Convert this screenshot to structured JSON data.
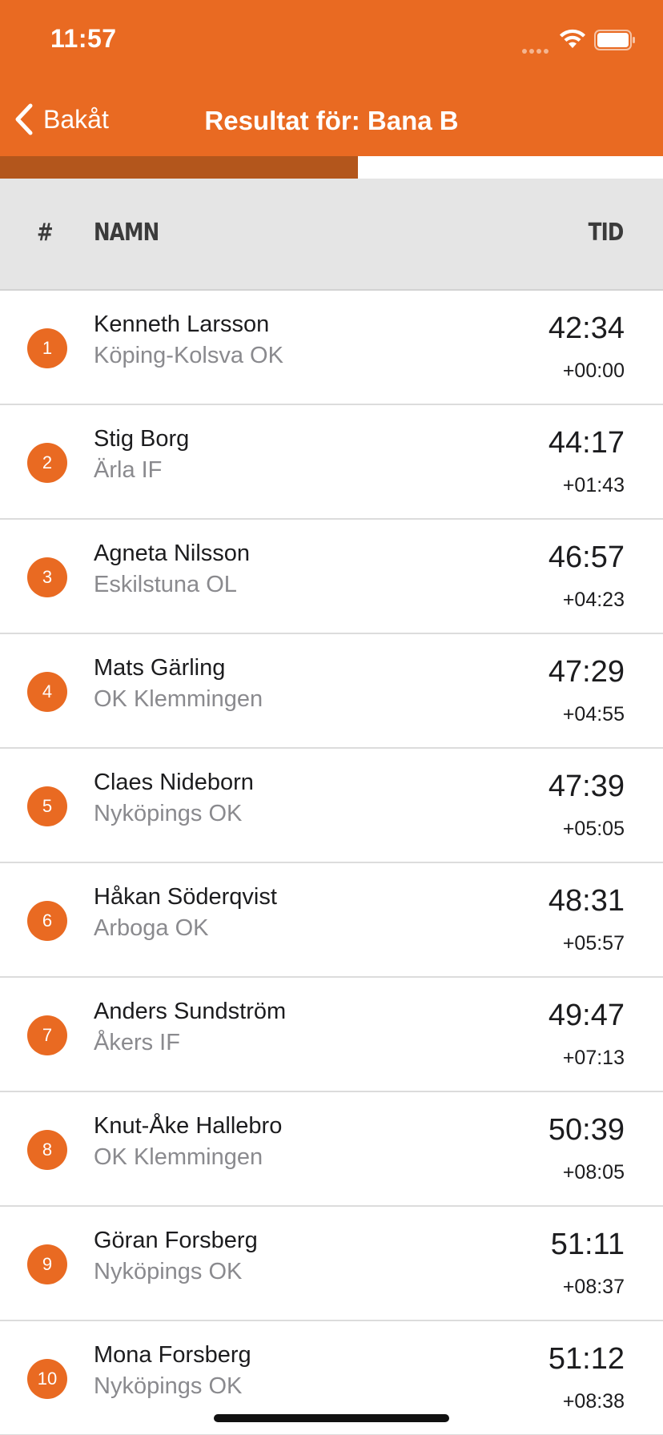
{
  "status_bar": {
    "time": "11:57"
  },
  "nav": {
    "back_label": "Bakåt",
    "title": "Resultat för: Bana B"
  },
  "progress": {
    "fraction": 0.54
  },
  "table": {
    "headers": {
      "rank": "#",
      "name": "NAMN",
      "time": "TID"
    },
    "rows": [
      {
        "rank": "1",
        "name": "Kenneth Larsson",
        "club": "Köping-Kolsva OK",
        "time": "42:34",
        "diff": "+00:00"
      },
      {
        "rank": "2",
        "name": "Stig Borg",
        "club": "Ärla IF",
        "time": "44:17",
        "diff": "+01:43"
      },
      {
        "rank": "3",
        "name": "Agneta Nilsson",
        "club": "Eskilstuna OL",
        "time": "46:57",
        "diff": "+04:23"
      },
      {
        "rank": "4",
        "name": "Mats Gärling",
        "club": "OK Klemmingen",
        "time": "47:29",
        "diff": "+04:55"
      },
      {
        "rank": "5",
        "name": "Claes Nideborn",
        "club": "Nyköpings OK",
        "time": "47:39",
        "diff": "+05:05"
      },
      {
        "rank": "6",
        "name": "Håkan Söderqvist",
        "club": "Arboga OK",
        "time": "48:31",
        "diff": "+05:57"
      },
      {
        "rank": "7",
        "name": "Anders Sundström",
        "club": "Åkers IF",
        "time": "49:47",
        "diff": "+07:13"
      },
      {
        "rank": "8",
        "name": "Knut-Åke Hallebro",
        "club": "OK Klemmingen",
        "time": "50:39",
        "diff": "+08:05"
      },
      {
        "rank": "9",
        "name": "Göran Forsberg",
        "club": "Nyköpings OK",
        "time": "51:11",
        "diff": "+08:37"
      },
      {
        "rank": "10",
        "name": "Mona Forsberg",
        "club": "Nyköpings OK",
        "time": "51:12",
        "diff": "+08:38"
      }
    ]
  },
  "colors": {
    "accent": "#E96A22",
    "progress_fill": "#B3561C",
    "header_bg": "#E5E5E5"
  },
  "icons": {
    "back": "chevron-left-icon",
    "wifi": "wifi-icon",
    "battery": "battery-icon",
    "signal": "signal-icon"
  }
}
